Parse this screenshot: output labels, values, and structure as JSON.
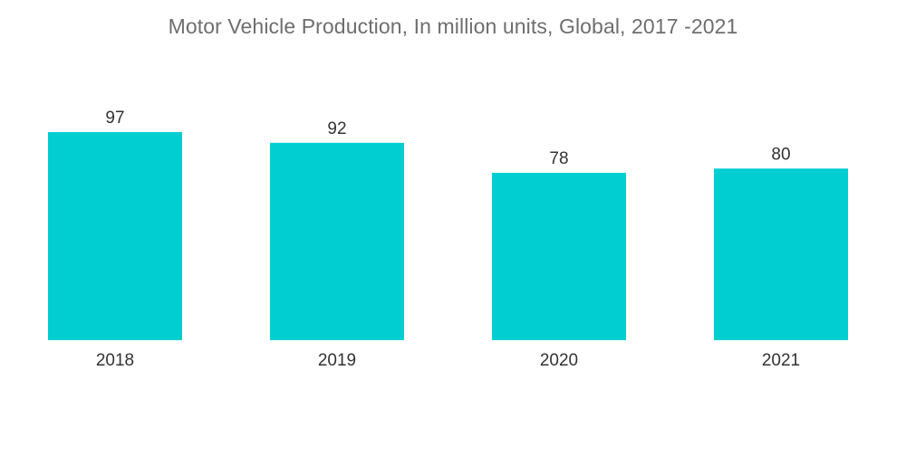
{
  "chart_data": {
    "type": "bar",
    "title": "Motor Vehicle Production, In million units, Global, 2017 -2021",
    "categories": [
      "2018",
      "2019",
      "2020",
      "2021"
    ],
    "values": [
      97,
      92,
      78,
      80
    ],
    "xlabel": "",
    "ylabel": "",
    "ylim": [
      0,
      97
    ],
    "grid": false,
    "legend": "none",
    "bar_color": "#00CED1"
  }
}
